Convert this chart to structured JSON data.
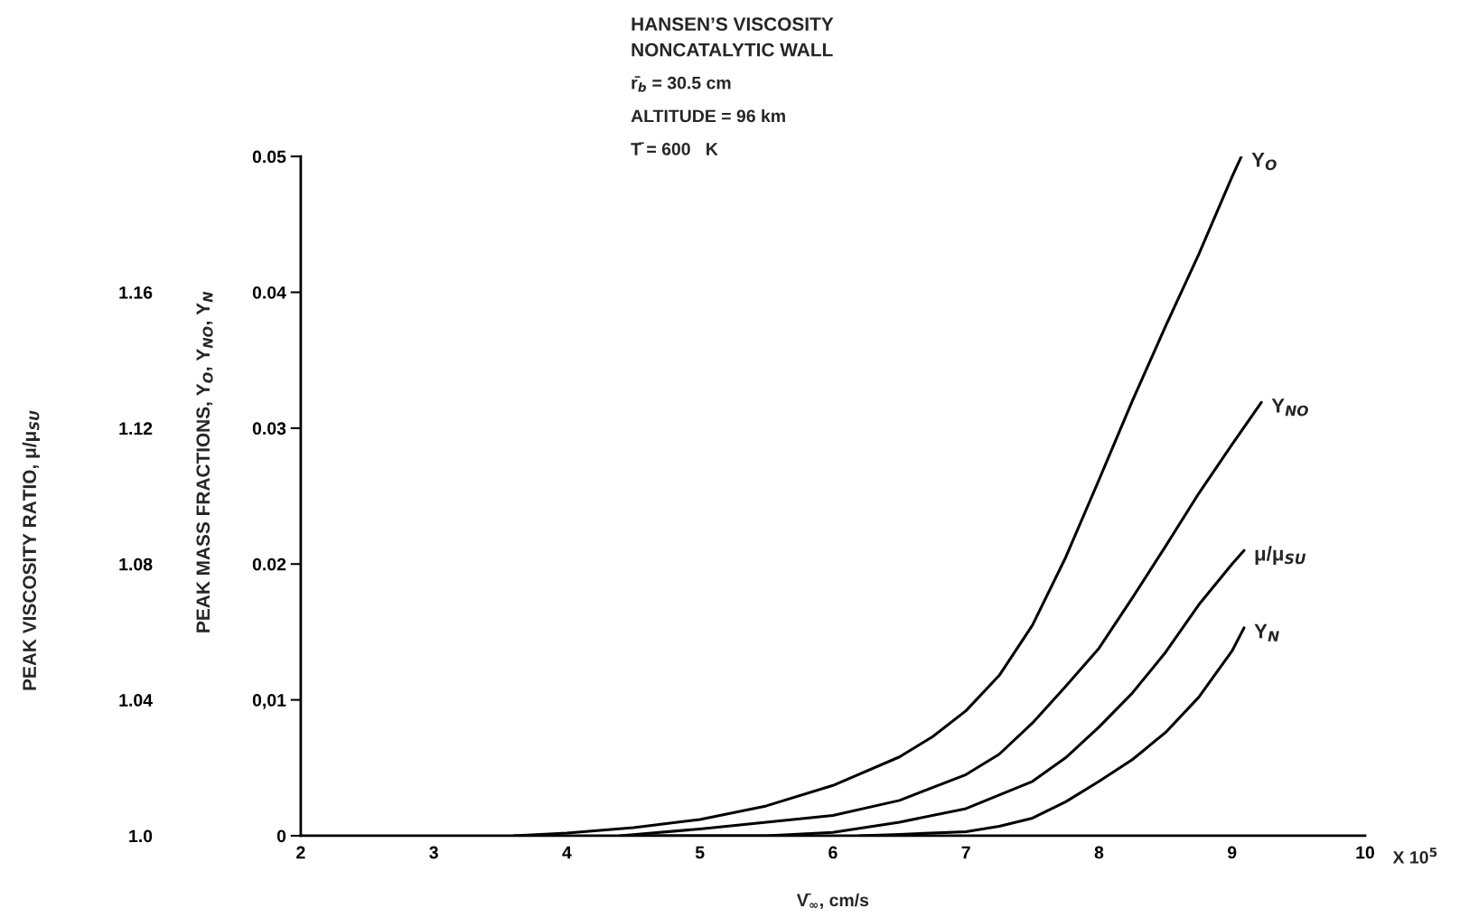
{
  "chart_data": {
    "type": "line",
    "title": "HANSEN’S VISCOSITY",
    "subtitle": "NONCATALYTIC WALL",
    "annotations": [
      "r̄$_{b}$ = 30.5 cm",
      "ALTITUDE = 96 km",
      "T̄ = 600   K",
      "X 10$^{5}$"
    ],
    "xlabel": "V̄$_{∞}$, cm/s",
    "ylabel": "PEAK MASS FRACTIONS, Y$_{O}$, Y$_{NO}$, Y$_{N}$",
    "y2label": "PEAK VISCOSITY RATIO, μ/μ$_{SU}$",
    "xlim": [
      2,
      10
    ],
    "xticks": [
      2,
      3,
      4,
      5,
      6,
      7,
      8,
      9,
      10
    ],
    "ylim": [
      0,
      0.05
    ],
    "yticks": [
      0,
      {
        "value": 0.01,
        "label": "0,01"
      },
      0.02,
      0.03,
      0.04,
      0.05
    ],
    "y2lim": [
      1.0,
      1.2
    ],
    "y2ticks": [
      {
        "value": 1.0,
        "label": "1.0"
      },
      1.04,
      1.08,
      1.12,
      1.16
    ],
    "grid": false,
    "series": [
      {
        "name": "Y$_{O}$",
        "color": "#000000",
        "x": [
          3.6,
          4.0,
          4.5,
          5.0,
          5.5,
          6.0,
          6.5,
          6.75,
          7.0,
          7.25,
          7.5,
          7.75,
          8.0,
          8.25,
          8.5,
          8.75,
          9.0,
          9.07
        ],
        "values": [
          0,
          0.0002,
          0.0006,
          0.0012,
          0.0022,
          0.0037,
          0.0058,
          0.0073,
          0.0092,
          0.0118,
          0.0155,
          0.0205,
          0.0262,
          0.032,
          0.0375,
          0.0428,
          0.0485,
          0.05
        ]
      },
      {
        "name": "Y$_{NO}$",
        "color": "#000000",
        "x": [
          4.4,
          5.0,
          5.5,
          6.0,
          6.5,
          7.0,
          7.25,
          7.5,
          7.75,
          8.0,
          8.25,
          8.5,
          8.75,
          9.0,
          9.22
        ],
        "values": [
          0,
          0.0005,
          0.001,
          0.0015,
          0.0026,
          0.0045,
          0.006,
          0.0083,
          0.011,
          0.0138,
          0.0175,
          0.0213,
          0.0252,
          0.0288,
          0.0319
        ]
      },
      {
        "name": "μ/μ$_{SU}$",
        "color": "#000000",
        "axis": "y2",
        "x": [
          4.5,
          5.5,
          6.0,
          6.5,
          7.0,
          7.5,
          7.75,
          8.0,
          8.25,
          8.5,
          8.75,
          9.0,
          9.09
        ],
        "values": [
          1.0,
          1.0,
          1.001,
          1.004,
          1.008,
          1.016,
          1.023,
          1.032,
          1.042,
          1.054,
          1.068,
          1.08,
          1.084
        ]
      },
      {
        "name": "Y$_{N}$",
        "color": "#000000",
        "x": [
          6.2,
          6.5,
          7.0,
          7.25,
          7.5,
          7.75,
          8.0,
          8.25,
          8.5,
          8.75,
          9.0,
          9.09
        ],
        "values": [
          0,
          0.0001,
          0.0003,
          0.0007,
          0.0013,
          0.0025,
          0.004,
          0.0056,
          0.0076,
          0.0102,
          0.0136,
          0.0153
        ]
      }
    ]
  }
}
